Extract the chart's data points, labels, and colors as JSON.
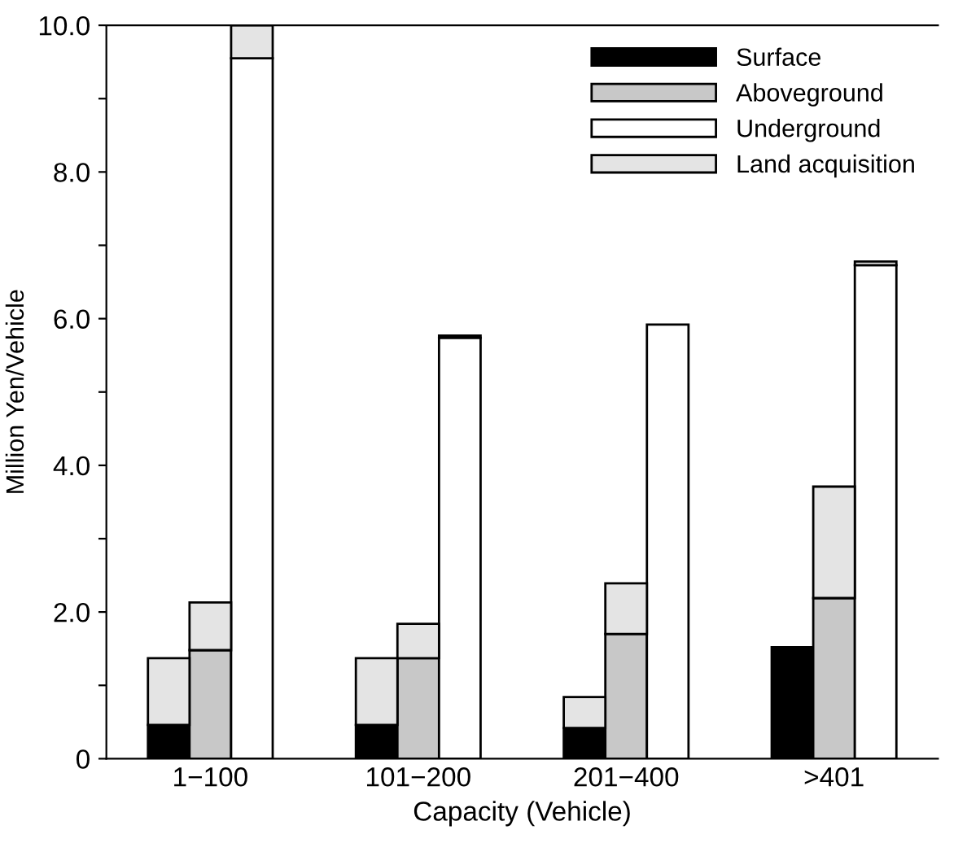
{
  "chart_data": {
    "type": "bar",
    "stacked": true,
    "xlabel": "Capacity (Vehicle)",
    "ylabel": "Million Yen/Vehicle",
    "categories": [
      null,
      "1−100",
      null,
      null,
      null,
      null,
      "101−200",
      null,
      null,
      null,
      null,
      "201−400",
      null,
      null,
      null,
      null,
      ">401",
      null
    ],
    "series": [
      {
        "name": "Surface",
        "color": "#000000",
        "values": [
          0.46,
          null,
          null,
          null,
          null,
          0.46,
          null,
          null,
          null,
          null,
          0.42,
          null,
          null,
          null,
          null,
          1.52,
          null,
          null
        ]
      },
      {
        "name": "Aboveground",
        "color": "#c8c8c8",
        "values": [
          null,
          1.48,
          null,
          null,
          null,
          null,
          1.37,
          null,
          null,
          null,
          null,
          1.7,
          null,
          null,
          null,
          null,
          2.19,
          null
        ]
      },
      {
        "name": "Underground",
        "color": "#ffffff",
        "values": [
          null,
          null,
          9.55,
          null,
          null,
          null,
          null,
          5.74,
          null,
          null,
          null,
          null,
          5.92,
          null,
          null,
          null,
          null,
          6.73
        ]
      },
      {
        "name": "Land acquisition",
        "color": "#e4e4e4",
        "values": [
          0.91,
          0.65,
          0.45,
          null,
          null,
          0.91,
          0.47,
          0.03,
          null,
          null,
          0.42,
          0.69,
          null,
          null,
          null,
          null,
          1.52,
          0.05
        ]
      }
    ],
    "ylim": [
      0,
      10.0
    ],
    "yticks": [
      0,
      {
        "value": 1,
        "label": null
      },
      {
        "value": 2,
        "label": "2.0"
      },
      {
        "value": 3,
        "label": null
      },
      {
        "value": 4,
        "label": "4.0"
      },
      {
        "value": 5,
        "label": null
      },
      {
        "value": 6,
        "label": "6.0"
      },
      {
        "value": 7,
        "label": null
      },
      {
        "value": 8,
        "label": "8.0"
      },
      {
        "value": 9,
        "label": null
      },
      {
        "value": 10,
        "label": "10.0"
      }
    ],
    "grid": false,
    "legend": "top right"
  }
}
